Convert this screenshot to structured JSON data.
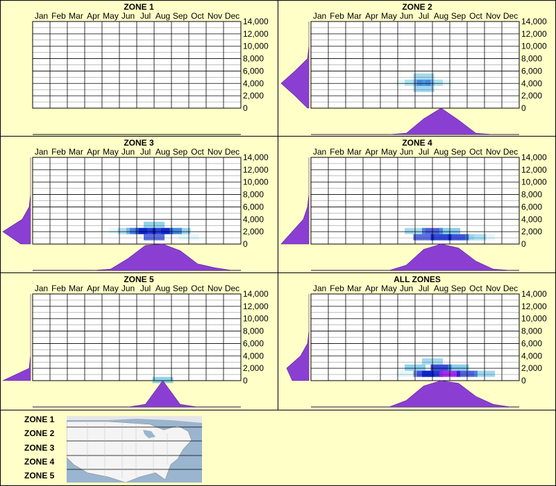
{
  "months": [
    "Jan",
    "Feb",
    "Mar",
    "Apr",
    "May",
    "Jun",
    "Jul",
    "Aug",
    "Sep",
    "Oct",
    "Nov",
    "Dec"
  ],
  "y_ticks": [
    "14,000",
    "12,000",
    "10,000",
    "8,000",
    "6,000",
    "4,000",
    "2,000",
    "0"
  ],
  "colors": {
    "background": "#ffffc8",
    "distribution": "#8a3fd2",
    "heat_low": "#c8f0f8",
    "heat_mid": "#40b0e0",
    "heat_high": "#0820d0",
    "heat_peak": "#a020f0"
  },
  "chart_data": [
    {
      "type": "heatmap",
      "title": "ZONE 1",
      "x_categories": [
        "Jan",
        "Feb",
        "Mar",
        "Apr",
        "May",
        "Jun",
        "Jul",
        "Aug",
        "Sep",
        "Oct",
        "Nov",
        "Dec"
      ],
      "ylim": [
        0,
        14000
      ],
      "cells": [],
      "month_distribution": [],
      "elevation_distribution": []
    },
    {
      "type": "heatmap",
      "title": "ZONE 2",
      "x_categories": [
        "Jan",
        "Feb",
        "Mar",
        "Apr",
        "May",
        "Jun",
        "Jul",
        "Aug",
        "Sep",
        "Oct",
        "Nov",
        "Dec"
      ],
      "ylim": [
        0,
        14000
      ],
      "cells": [
        {
          "month": 6.5,
          "elev": 4000,
          "intensity": 0.6
        },
        {
          "month": 6.0,
          "elev": 4000,
          "intensity": 0.25
        },
        {
          "month": 7.0,
          "elev": 4000,
          "intensity": 0.3
        },
        {
          "month": 6.5,
          "elev": 3000,
          "intensity": 0.25
        },
        {
          "month": 6.5,
          "elev": 5000,
          "intensity": 0.2
        },
        {
          "month": 5.5,
          "elev": 4000,
          "intensity": 0.12
        },
        {
          "month": 7.5,
          "elev": 4000,
          "intensity": 0.12
        }
      ],
      "month_distribution": [
        0,
        0,
        0,
        0,
        0,
        0.05,
        0.6,
        1.0,
        0.55,
        0.05,
        0,
        0
      ],
      "elevation_distribution": [
        0,
        0,
        0,
        0.05,
        0.5,
        1.0,
        0.5,
        0.05
      ]
    },
    {
      "type": "heatmap",
      "title": "ZONE 3",
      "x_categories": [
        "Jan",
        "Feb",
        "Mar",
        "Apr",
        "May",
        "Jun",
        "Jul",
        "Aug",
        "Sep",
        "Oct",
        "Nov",
        "Dec"
      ],
      "ylim": [
        0,
        14000
      ],
      "cells": [
        {
          "month": 6.5,
          "elev": 2000,
          "intensity": 0.9
        },
        {
          "month": 7.5,
          "elev": 2000,
          "intensity": 0.85
        },
        {
          "month": 6.0,
          "elev": 2000,
          "intensity": 0.7
        },
        {
          "month": 8.0,
          "elev": 2000,
          "intensity": 0.6
        },
        {
          "month": 7.0,
          "elev": 1000,
          "intensity": 0.5
        },
        {
          "month": 7.0,
          "elev": 3000,
          "intensity": 0.35
        },
        {
          "month": 5.5,
          "elev": 2000,
          "intensity": 0.3
        },
        {
          "month": 8.5,
          "elev": 2000,
          "intensity": 0.3
        },
        {
          "month": 5.0,
          "elev": 2000,
          "intensity": 0.12
        },
        {
          "month": 9.0,
          "elev": 1000,
          "intensity": 0.12
        }
      ],
      "month_distribution": [
        0,
        0,
        0,
        0,
        0.05,
        0.45,
        0.95,
        1.0,
        0.75,
        0.25,
        0.1,
        0
      ],
      "elevation_distribution": [
        0,
        0,
        0,
        0,
        0.05,
        0.3,
        1.0,
        0.35
      ]
    },
    {
      "type": "heatmap",
      "title": "ZONE 4",
      "x_categories": [
        "Jan",
        "Feb",
        "Mar",
        "Apr",
        "May",
        "Jun",
        "Jul",
        "Aug",
        "Sep",
        "Oct",
        "Nov",
        "Dec"
      ],
      "ylim": [
        0,
        14000
      ],
      "cells": [
        {
          "month": 7.5,
          "elev": 1000,
          "intensity": 0.8
        },
        {
          "month": 8.5,
          "elev": 1000,
          "intensity": 0.7
        },
        {
          "month": 7.0,
          "elev": 2000,
          "intensity": 0.6
        },
        {
          "month": 6.5,
          "elev": 1000,
          "intensity": 0.5
        },
        {
          "month": 8.0,
          "elev": 2000,
          "intensity": 0.45
        },
        {
          "month": 9.5,
          "elev": 1000,
          "intensity": 0.3
        },
        {
          "month": 6.0,
          "elev": 2000,
          "intensity": 0.2
        },
        {
          "month": 10.0,
          "elev": 1000,
          "intensity": 0.12
        }
      ],
      "month_distribution": [
        0,
        0,
        0,
        0,
        0,
        0.2,
        0.8,
        1.0,
        0.85,
        0.35,
        0.05,
        0
      ],
      "elevation_distribution": [
        0,
        0,
        0,
        0,
        0.05,
        0.2,
        0.6,
        1.0
      ]
    },
    {
      "type": "heatmap",
      "title": "ZONE 5",
      "x_categories": [
        "Jan",
        "Feb",
        "Mar",
        "Apr",
        "May",
        "Jun",
        "Jul",
        "Aug",
        "Sep",
        "Oct",
        "Nov",
        "Dec"
      ],
      "ylim": [
        0,
        14000
      ],
      "cells": [
        {
          "month": 7.5,
          "elev": 0,
          "intensity": 0.4
        }
      ],
      "month_distribution": [
        0,
        0,
        0,
        0,
        0,
        0,
        0.1,
        1.0,
        0.1,
        0,
        0,
        0
      ],
      "elevation_distribution": [
        0,
        0,
        0,
        0,
        0,
        0,
        0.05,
        1.0
      ]
    },
    {
      "type": "heatmap",
      "title": "ALL ZONES",
      "x_categories": [
        "Jan",
        "Feb",
        "Mar",
        "Apr",
        "May",
        "Jun",
        "Jul",
        "Aug",
        "Sep",
        "Oct",
        "Nov",
        "Dec"
      ],
      "ylim": [
        0,
        14000
      ],
      "cells": [
        {
          "month": 7.0,
          "elev": 1000,
          "intensity": 0.9
        },
        {
          "month": 8.0,
          "elev": 1000,
          "intensity": 1.0
        },
        {
          "month": 7.5,
          "elev": 2000,
          "intensity": 0.75
        },
        {
          "month": 6.5,
          "elev": 1000,
          "intensity": 0.7
        },
        {
          "month": 9.0,
          "elev": 1000,
          "intensity": 0.6
        },
        {
          "month": 6.0,
          "elev": 2000,
          "intensity": 0.4
        },
        {
          "month": 8.5,
          "elev": 2000,
          "intensity": 0.45
        },
        {
          "month": 10.0,
          "elev": 1000,
          "intensity": 0.25
        },
        {
          "month": 5.5,
          "elev": 1000,
          "intensity": 0.15
        },
        {
          "month": 7.0,
          "elev": 3000,
          "intensity": 0.2
        }
      ],
      "month_distribution": [
        0,
        0,
        0,
        0,
        0,
        0.25,
        0.8,
        1.0,
        0.9,
        0.4,
        0.1,
        0
      ],
      "elevation_distribution": [
        0,
        0,
        0,
        0,
        0.05,
        0.3,
        0.8,
        0.6
      ]
    }
  ],
  "legend": {
    "zones": [
      "ZONE 1",
      "ZONE 2",
      "ZONE 3",
      "ZONE 4",
      "ZONE 5"
    ],
    "map_icon": "us-map-zones"
  }
}
